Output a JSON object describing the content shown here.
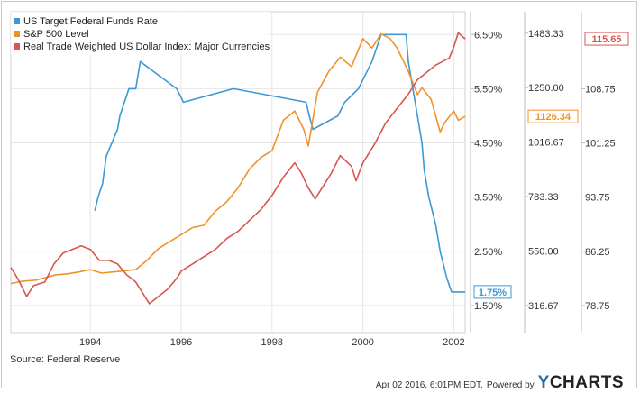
{
  "chart_data": {
    "type": "line",
    "xlim": [
      1992.25,
      2002.25
    ],
    "x_ticks": [
      1994,
      1996,
      1998,
      2000,
      2002
    ],
    "x_tick_labels": [
      "1994",
      "1996",
      "1998",
      "2000",
      "2002"
    ],
    "grid": true,
    "legend_position": "top-left",
    "axes": [
      {
        "id": "rate",
        "position": "right",
        "range": [
          1.0,
          6.92
        ],
        "ticks": [
          1.5,
          2.5,
          3.5,
          4.5,
          5.5,
          6.5
        ],
        "tick_labels": [
          "1.50%",
          "2.50%",
          "3.50%",
          "4.50%",
          "5.50%",
          "6.50%"
        ]
      },
      {
        "id": "sp500",
        "position": "right",
        "range": [
          199.99,
          1575.2
        ],
        "ticks": [
          316.67,
          550.0,
          783.33,
          1016.67,
          1250.0,
          1483.33
        ],
        "tick_labels": [
          "316.67",
          "550.00",
          "783.33",
          "1016.67",
          "1250.00",
          "1483.33"
        ]
      },
      {
        "id": "dollar",
        "position": "right",
        "range": [
          75.0,
          119.4
        ],
        "ticks": [
          78.75,
          86.25,
          93.75,
          101.25,
          108.75
        ],
        "tick_labels": [
          "78.75",
          "86.25",
          "93.75",
          "101.25",
          "108.75"
        ]
      }
    ],
    "series": [
      {
        "name": "US Target Federal Funds Rate",
        "axis": "rate",
        "color": "#3d98d3",
        "last_label": "1.75%",
        "x": [
          1994.1,
          1994.17,
          1994.27,
          1994.35,
          1994.6,
          1994.65,
          1994.85,
          1995.0,
          1995.1,
          1995.5,
          1995.9,
          1996.05,
          1997.15,
          1998.75,
          1998.82,
          1998.9,
          1999.45,
          1999.6,
          1999.9,
          2000.05,
          2000.2,
          2000.4,
          2000.95,
          2001.0,
          2001.1,
          2001.2,
          2001.3,
          2001.35,
          2001.45,
          2001.6,
          2001.7,
          2001.85,
          2001.95,
          2002.25
        ],
        "y": [
          3.25,
          3.5,
          3.75,
          4.25,
          4.75,
          5.0,
          5.5,
          5.5,
          6.0,
          5.75,
          5.5,
          5.25,
          5.5,
          5.25,
          5.0,
          4.75,
          5.0,
          5.25,
          5.5,
          5.75,
          6.0,
          6.5,
          6.5,
          6.0,
          5.5,
          5.0,
          4.5,
          4.0,
          3.5,
          3.0,
          2.5,
          2.0,
          1.75,
          1.75
        ]
      },
      {
        "name": "S&P 500 Level",
        "axis": "sp500",
        "color": "#f0922b",
        "last_label": "1126.34",
        "x": [
          1992.25,
          1992.5,
          1992.8,
          1993.0,
          1993.25,
          1993.5,
          1993.75,
          1994.0,
          1994.25,
          1994.5,
          1994.75,
          1995.0,
          1995.25,
          1995.5,
          1995.75,
          1996.0,
          1996.25,
          1996.5,
          1996.75,
          1997.0,
          1997.25,
          1997.5,
          1997.75,
          1998.0,
          1998.25,
          1998.5,
          1998.7,
          1998.8,
          1999.0,
          1999.25,
          1999.5,
          1999.75,
          2000.0,
          2000.2,
          2000.4,
          2000.6,
          2000.75,
          2000.9,
          2001.0,
          2001.2,
          2001.3,
          2001.5,
          2001.7,
          2001.8,
          2002.0,
          2002.1,
          2002.25
        ],
        "y": [
          410,
          420,
          425,
          435,
          448,
          452,
          460,
          470,
          455,
          460,
          465,
          470,
          510,
          560,
          590,
          620,
          650,
          660,
          720,
          760,
          820,
          900,
          950,
          980,
          1110,
          1150,
          1070,
          1000,
          1230,
          1320,
          1380,
          1340,
          1460,
          1420,
          1480,
          1460,
          1420,
          1360,
          1320,
          1220,
          1250,
          1200,
          1060,
          1100,
          1150,
          1110,
          1126.34
        ]
      },
      {
        "name": "Real Trade Weighted US Dollar Index: Major Currencies",
        "axis": "dollar",
        "color": "#d85650",
        "last_label": "115.65",
        "x": [
          1992.25,
          1992.4,
          1992.6,
          1992.75,
          1993.0,
          1993.2,
          1993.4,
          1993.6,
          1993.8,
          1994.0,
          1994.2,
          1994.4,
          1994.6,
          1994.8,
          1995.0,
          1995.15,
          1995.3,
          1995.5,
          1995.7,
          1995.9,
          1996.0,
          1996.25,
          1996.5,
          1996.75,
          1997.0,
          1997.25,
          1997.5,
          1997.75,
          1998.0,
          1998.25,
          1998.5,
          1998.65,
          1998.8,
          1998.95,
          1999.1,
          1999.3,
          1999.5,
          1999.75,
          1999.85,
          2000.0,
          2000.25,
          2000.5,
          2000.75,
          2001.0,
          2001.2,
          2001.4,
          2001.6,
          2001.75,
          2001.9,
          2002.0,
          2002.1,
          2002.25
        ],
        "y": [
          84,
          82.5,
          80,
          81.5,
          82,
          84.5,
          86,
          86.5,
          87,
          86.5,
          85,
          85,
          84.5,
          83,
          82,
          80.5,
          79,
          80,
          81,
          82.5,
          83.5,
          84.5,
          85.5,
          86.5,
          88,
          89,
          90.5,
          92,
          94,
          96.5,
          98.5,
          97,
          95,
          93.5,
          95,
          97,
          99.5,
          98,
          96,
          98.5,
          101,
          104,
          106,
          108,
          110,
          111,
          112,
          112.5,
          113,
          114.5,
          116.5,
          115.65
        ]
      }
    ]
  },
  "source": "Source: Federal Reserve",
  "footer": {
    "timestamp": "Apr 02 2016, 6:01PM EDT.",
    "powered_by": "Powered by",
    "brand_y": "Y",
    "brand_rest": "CHARTS"
  }
}
